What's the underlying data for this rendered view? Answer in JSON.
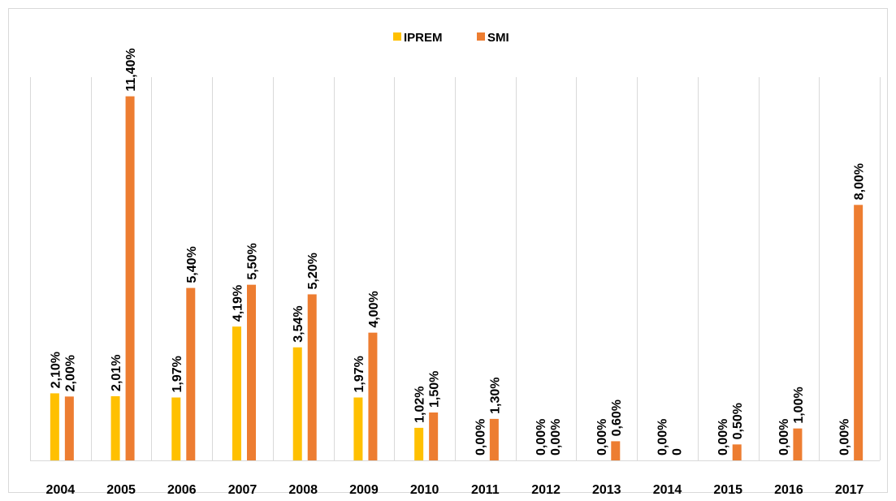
{
  "chart_data": {
    "type": "bar",
    "categories": [
      "2004",
      "2005",
      "2006",
      "2007",
      "2008",
      "2009",
      "2010",
      "2011",
      "2012",
      "2013",
      "2014",
      "2015",
      "2016",
      "2017"
    ],
    "series": [
      {
        "name": "IPREM",
        "color": "#ffc000",
        "values": [
          2.1,
          2.01,
          1.97,
          4.19,
          3.54,
          1.97,
          1.02,
          0,
          0,
          0,
          0,
          0,
          0,
          0
        ],
        "value_labels": [
          "2,10%",
          "2,01%",
          "1,97%",
          "4,19%",
          "3,54%",
          "1,97%",
          "1,02%",
          "0,00%",
          "0,00%",
          "0,00%",
          "0,00%",
          "0,00%",
          "0,00%",
          "0,00%"
        ]
      },
      {
        "name": "SMI",
        "color": "#ed7d31",
        "values": [
          2.0,
          11.4,
          5.4,
          5.5,
          5.2,
          4.0,
          1.5,
          1.3,
          0,
          0.6,
          0,
          0.5,
          1.0,
          8.0
        ],
        "value_labels": [
          "2,00%",
          "11,40%",
          "5,40%",
          "5,50%",
          "5,20%",
          "4,00%",
          "1,50%",
          "1,30%",
          "0,00%",
          "0,60%",
          "0",
          "0,50%",
          "1,00%",
          "8,00%"
        ]
      }
    ],
    "ylim": [
      0,
      12
    ],
    "legend": "top"
  }
}
